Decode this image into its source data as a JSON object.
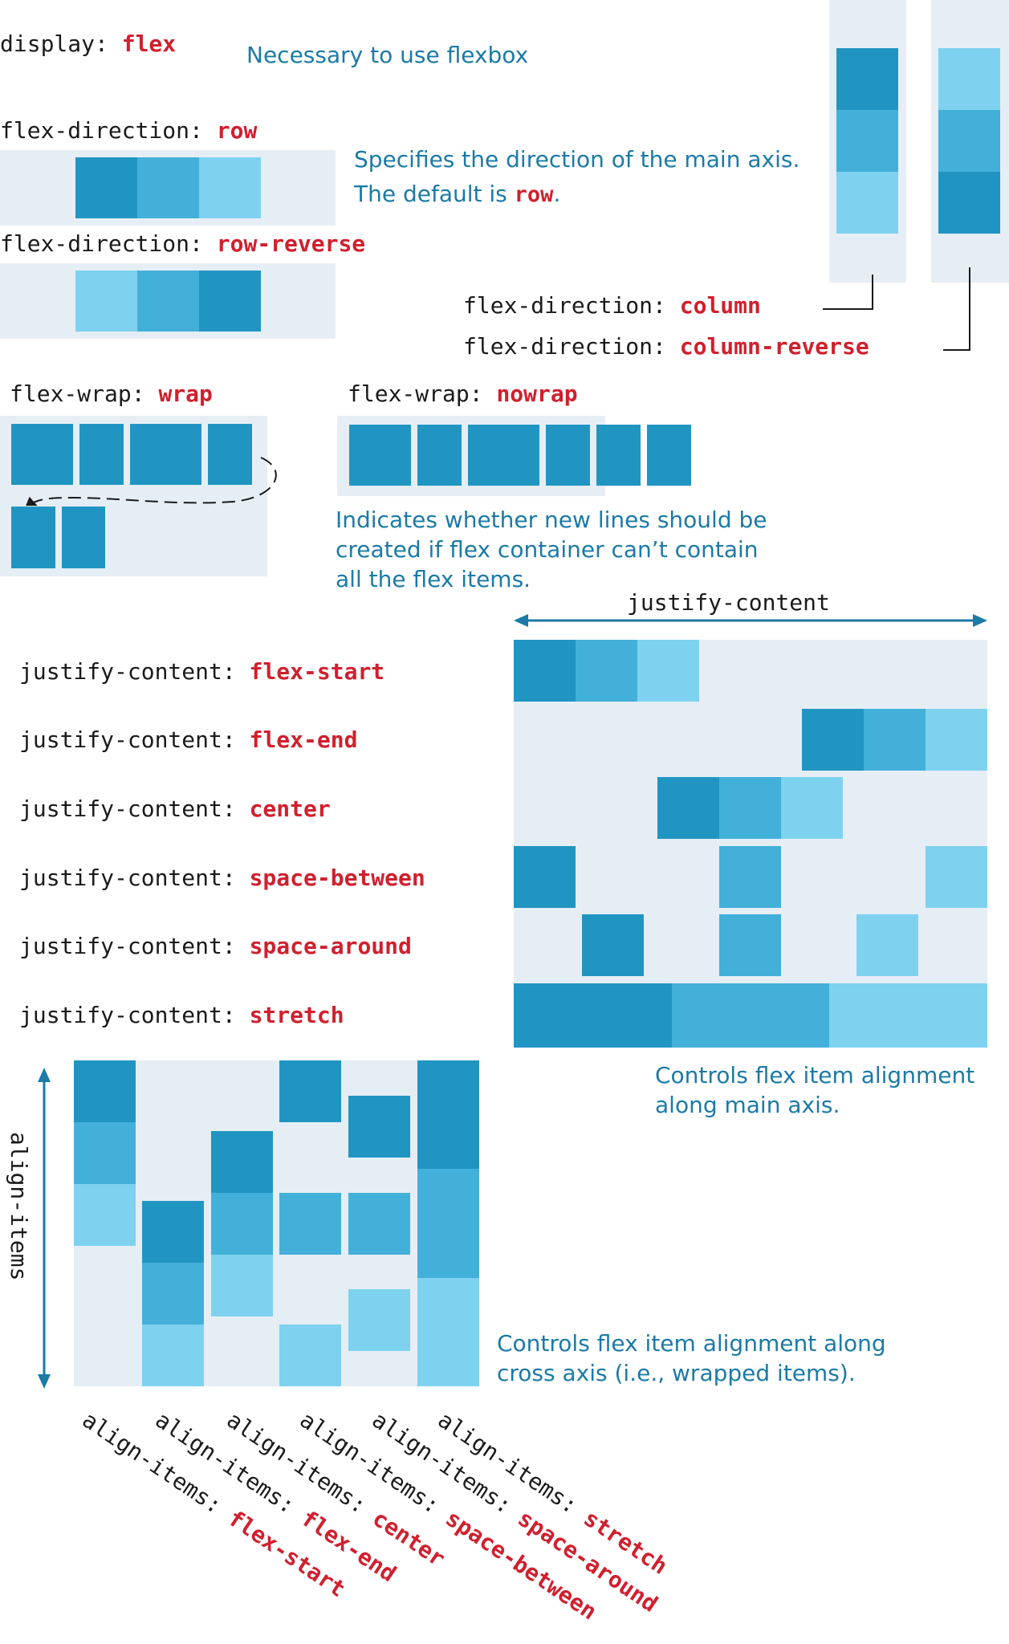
{
  "colors": {
    "dark": "#2195c2",
    "mid": "#43b0d9",
    "light": "#7ed2ef",
    "bg": "#e6eef5",
    "value": "#d0202e",
    "description": "#1b7aa6"
  },
  "display": {
    "property": "display:",
    "value": "flex",
    "description": "Necessary to use flexbox"
  },
  "flex_direction": {
    "row": {
      "property": "flex-direction:",
      "value": "row"
    },
    "row_reverse": {
      "property": "flex-direction:",
      "value": "row-reverse"
    },
    "column": {
      "property": "flex-direction:",
      "value": "column"
    },
    "column_reverse": {
      "property": "flex-direction:",
      "value": "column-reverse"
    },
    "description_line1": "Specifies the direction of the main axis.",
    "description_line2_prefix": "The default is ",
    "description_line2_value": "row",
    "description_line2_suffix": "."
  },
  "flex_wrap": {
    "wrap": {
      "property": "flex-wrap:",
      "value": "wrap"
    },
    "nowrap": {
      "property": "flex-wrap:",
      "value": "nowrap"
    },
    "description_lines": [
      "Indicates whether new lines should be",
      "created if flex container can’t contain",
      "all the flex items."
    ]
  },
  "justify_content": {
    "axis_label": "justify-content",
    "property": "justify-content:",
    "values": [
      "flex-start",
      "flex-end",
      "center",
      "space-between",
      "space-around",
      "stretch"
    ],
    "description_lines": [
      "Controls flex item alignment",
      "along main axis."
    ]
  },
  "align_items": {
    "axis_label": "align-items",
    "property": "align-items:",
    "values": [
      "flex-start",
      "flex-end",
      "center",
      "space-between",
      "space-around",
      "stretch"
    ],
    "description_lines": [
      "Controls flex item alignment along",
      "cross axis (i.e., wrapped items)."
    ]
  }
}
